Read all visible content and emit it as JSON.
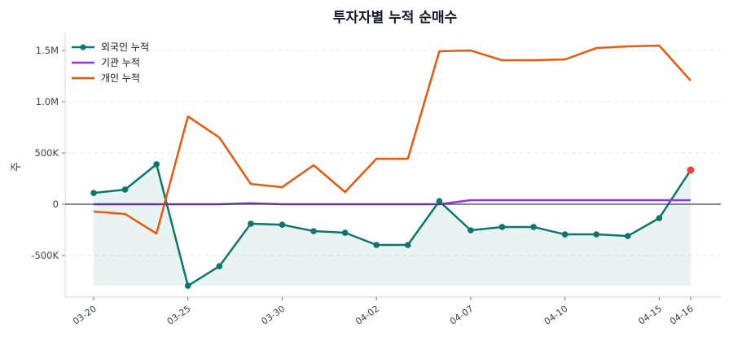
{
  "chart_data": {
    "type": "line",
    "title": "투자자별 누적 순매수",
    "xlabel": "",
    "ylabel": "주",
    "ylim": [
      -905000,
      1675000
    ],
    "yticks": [
      {
        "value": -500000,
        "label": "-500K"
      },
      {
        "value": 0,
        "label": "0"
      },
      {
        "value": 500000,
        "label": "500K"
      },
      {
        "value": 1000000,
        "label": "1.0M"
      },
      {
        "value": 1500000,
        "label": "1.5M"
      }
    ],
    "x_count": 20,
    "xticks": [
      {
        "index": 0,
        "label": "03-20"
      },
      {
        "index": 3,
        "label": "03-25"
      },
      {
        "index": 6,
        "label": "03-30"
      },
      {
        "index": 9,
        "label": "04-02"
      },
      {
        "index": 12,
        "label": "04-07"
      },
      {
        "index": 15,
        "label": "04-10"
      },
      {
        "index": 18,
        "label": "04-15"
      },
      {
        "index": 19,
        "label": "04-16"
      }
    ],
    "grid": "y-dashed",
    "legend_placement": "top-left",
    "series": [
      {
        "name": "외국인 누적",
        "color": "#0f766e",
        "markers": true,
        "fill": true,
        "last_point_color": "#ef4444",
        "values": [
          110000,
          143000,
          390000,
          -795000,
          -605000,
          -190000,
          -200000,
          -262000,
          -278000,
          -397000,
          -397000,
          30000,
          -254000,
          -222000,
          -222000,
          -294000,
          -294000,
          -310000,
          -135000,
          333000
        ]
      },
      {
        "name": "기관 누적",
        "color": "#9333ea",
        "markers": false,
        "values": [
          0,
          0,
          0,
          0,
          0,
          10000,
          0,
          0,
          0,
          0,
          0,
          0,
          40000,
          40000,
          40000,
          40000,
          40000,
          40000,
          40000,
          40000
        ]
      },
      {
        "name": "개인 누적",
        "color": "#ea580c",
        "markers": false,
        "values": [
          -71000,
          -95000,
          -286000,
          857000,
          651000,
          198000,
          167000,
          381000,
          119000,
          444000,
          444000,
          1492000,
          1500000,
          1405000,
          1405000,
          1413000,
          1524000,
          1540000,
          1548000,
          1206000
        ]
      }
    ]
  }
}
